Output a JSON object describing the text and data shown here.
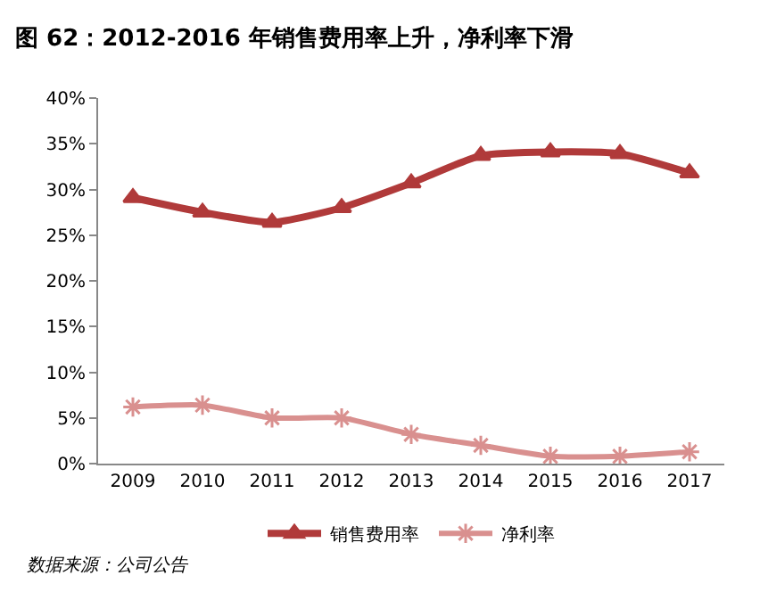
{
  "chart_data": {
    "type": "line",
    "title": "图 62：2012-2016 年销售费用率上升，净利率下滑",
    "categories": [
      "2009",
      "2010",
      "2011",
      "2012",
      "2013",
      "2014",
      "2015",
      "2016",
      "2017"
    ],
    "series": [
      {
        "name": "销售费用率",
        "color": "#b03a3a",
        "marker": "triangle",
        "values": [
          29.1,
          27.5,
          26.4,
          28.0,
          30.7,
          33.7,
          34.1,
          33.9,
          31.8
        ]
      },
      {
        "name": "净利率",
        "color": "#d9908f",
        "marker": "cross",
        "values": [
          6.2,
          6.4,
          5.0,
          5.0,
          3.2,
          2.0,
          0.8,
          0.8,
          1.3
        ]
      }
    ],
    "ylim": [
      0,
      40
    ],
    "yticks": [
      {
        "value": 0,
        "label": "0%"
      },
      {
        "value": 5,
        "label": "5%"
      },
      {
        "value": 10,
        "label": "10%"
      },
      {
        "value": 15,
        "label": "15%"
      },
      {
        "value": 20,
        "label": "20%"
      },
      {
        "value": 25,
        "label": "25%"
      },
      {
        "value": 30,
        "label": "30%"
      },
      {
        "value": 35,
        "label": "35%"
      },
      {
        "value": 40,
        "label": "40%"
      }
    ],
    "legend": "bottom",
    "line_style": "solid",
    "annotations": [
      "数据来源：公司公告"
    ]
  }
}
